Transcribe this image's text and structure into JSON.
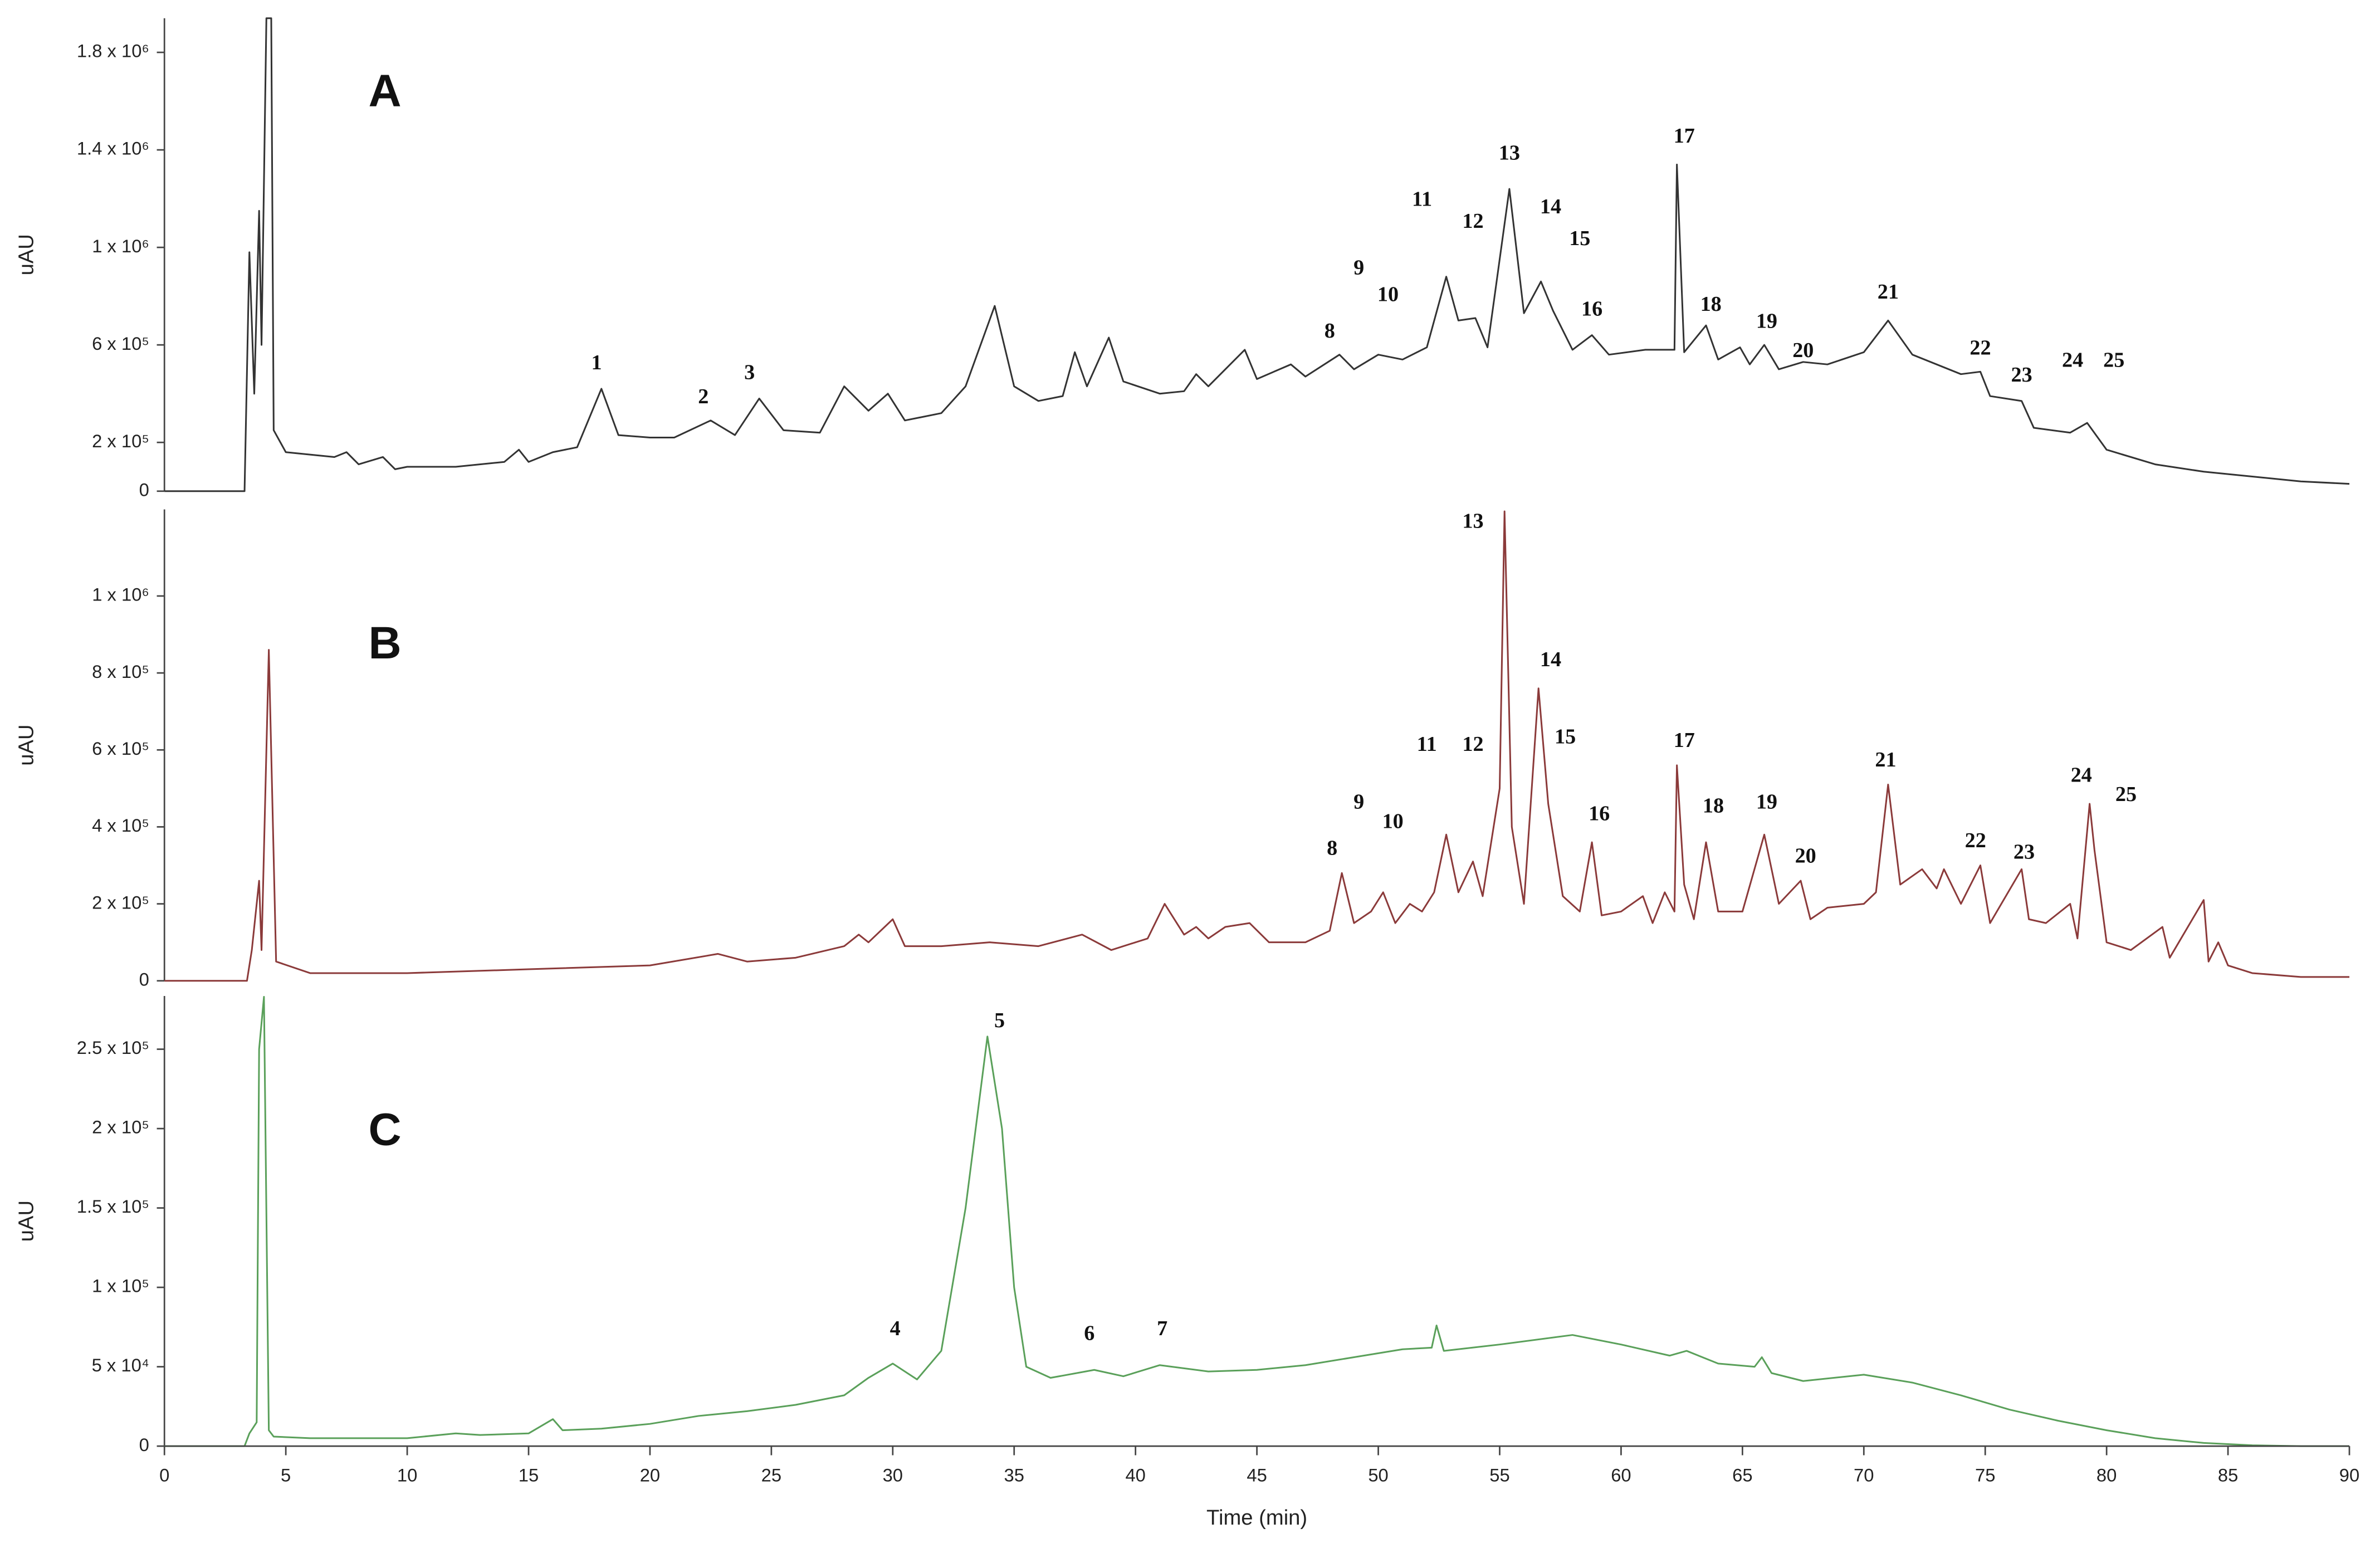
{
  "chart_data": [
    {
      "type": "line",
      "panel": "A",
      "ylabel": "uAU",
      "xlim": [
        0,
        90
      ],
      "ylim": [
        0,
        1940000
      ],
      "yticks": [
        0,
        {
          "value": 200000,
          "label": "2 x 10⁵"
        },
        {
          "value": 600000,
          "label": "6 x 10⁵"
        },
        {
          "value": 1000000,
          "label": "1 x 10⁶"
        },
        {
          "value": 1400000,
          "label": "1.4 x 10⁶"
        },
        {
          "value": 1800000,
          "label": "1.8 x 10⁶"
        }
      ],
      "x": [
        0,
        3.3,
        3.5,
        3.7,
        3.9,
        4.0,
        4.2,
        4.4,
        4.5,
        5,
        6,
        7,
        7.5,
        8,
        9,
        9.5,
        10,
        12,
        14,
        14.6,
        15,
        16,
        17,
        18,
        18.7,
        20,
        21,
        22.5,
        23.5,
        24.5,
        25.5,
        27,
        28,
        29,
        29.8,
        30.5,
        32,
        33,
        34.2,
        35,
        36,
        37,
        37.5,
        38,
        38.9,
        39.5,
        41,
        42,
        42.5,
        43,
        44.5,
        45,
        46.4,
        47,
        48.4,
        49,
        50,
        51,
        52,
        52.8,
        53.3,
        54,
        54.5,
        55.4,
        56,
        56.7,
        57.2,
        58,
        58.8,
        59.5,
        61,
        62.2,
        62.3,
        62.6,
        63.5,
        64,
        64.9,
        65.3,
        65.9,
        66.5,
        67.5,
        68.5,
        70,
        71,
        72,
        74,
        74.8,
        75.2,
        76.5,
        77,
        78.5,
        79.2,
        80,
        82,
        84,
        86,
        88,
        90
      ],
      "series": [
        {
          "color": "#333333",
          "values": [
            0,
            0,
            980000,
            400000,
            1150000,
            600000,
            1940000,
            1940000,
            250000,
            160000,
            150000,
            140000,
            160000,
            110000,
            140000,
            90000,
            100000,
            100000,
            120000,
            170000,
            120000,
            160000,
            180000,
            420000,
            230000,
            220000,
            220000,
            290000,
            230000,
            380000,
            250000,
            240000,
            430000,
            330000,
            400000,
            290000,
            320000,
            430000,
            760000,
            430000,
            370000,
            390000,
            570000,
            430000,
            630000,
            450000,
            400000,
            410000,
            480000,
            430000,
            580000,
            460000,
            520000,
            470000,
            560000,
            500000,
            560000,
            540000,
            590000,
            880000,
            700000,
            710000,
            590000,
            1240000,
            730000,
            860000,
            740000,
            580000,
            640000,
            560000,
            580000,
            580000,
            1340000,
            570000,
            680000,
            540000,
            590000,
            520000,
            600000,
            500000,
            530000,
            520000,
            570000,
            700000,
            560000,
            480000,
            490000,
            390000,
            370000,
            260000,
            240000,
            280000,
            170000,
            110000,
            80000,
            60000,
            40000,
            30000
          ]
        }
      ],
      "annotations": [
        {
          "text": "1",
          "x": 17.8,
          "y": 520000
        },
        {
          "text": "2",
          "x": 22.2,
          "y": 380000
        },
        {
          "text": "3",
          "x": 24.1,
          "y": 480000
        },
        {
          "text": "8",
          "x": 48,
          "y": 650000
        },
        {
          "text": "9",
          "x": 49.2,
          "y": 910000
        },
        {
          "text": "10",
          "x": 50.4,
          "y": 800000
        },
        {
          "text": "11",
          "x": 51.8,
          "y": 1190000
        },
        {
          "text": "12",
          "x": 53.9,
          "y": 1100000
        },
        {
          "text": "13",
          "x": 55.4,
          "y": 1380000
        },
        {
          "text": "14",
          "x": 57.1,
          "y": 1160000
        },
        {
          "text": "15",
          "x": 58.3,
          "y": 1030000
        },
        {
          "text": "16",
          "x": 58.8,
          "y": 740000
        },
        {
          "text": "17",
          "x": 62.6,
          "y": 1450000
        },
        {
          "text": "18",
          "x": 63.7,
          "y": 760000
        },
        {
          "text": "19",
          "x": 66,
          "y": 690000
        },
        {
          "text": "20",
          "x": 67.5,
          "y": 570000
        },
        {
          "text": "21",
          "x": 71,
          "y": 810000
        },
        {
          "text": "22",
          "x": 74.8,
          "y": 580000
        },
        {
          "text": "23",
          "x": 76.5,
          "y": 470000
        },
        {
          "text": "24",
          "x": 78.6,
          "y": 530000
        },
        {
          "text": "25",
          "x": 80.3,
          "y": 530000
        }
      ]
    },
    {
      "type": "line",
      "panel": "B",
      "ylabel": "uAU",
      "xlim": [
        0,
        90
      ],
      "ylim": [
        0,
        1225000
      ],
      "yticks": [
        0,
        {
          "value": 200000,
          "label": "2 x 10⁵"
        },
        {
          "value": 400000,
          "label": "4 x 10⁵"
        },
        {
          "value": 600000,
          "label": "6 x 10⁵"
        },
        {
          "value": 800000,
          "label": "8 x 10⁵"
        },
        {
          "value": 1000000,
          "label": "1 x 10⁶"
        }
      ],
      "x": [
        0,
        3.4,
        3.6,
        3.9,
        4.0,
        4.3,
        4.6,
        6,
        10,
        15,
        20,
        22.8,
        24,
        26,
        28,
        28.6,
        29,
        30,
        30.5,
        32,
        34,
        36,
        37.8,
        39,
        40.5,
        41.2,
        42,
        42.5,
        43,
        43.7,
        44.7,
        45.5,
        47,
        48,
        48.5,
        49,
        49.7,
        50.2,
        50.7,
        51.3,
        51.8,
        52.3,
        52.8,
        53.3,
        53.9,
        54.3,
        55.0,
        55.2,
        55.5,
        56,
        56.6,
        57,
        57.6,
        58.3,
        58.8,
        59.2,
        60,
        60.9,
        61.3,
        61.8,
        62.2,
        62.3,
        62.6,
        63,
        63.5,
        64,
        65,
        65.9,
        66.5,
        67.4,
        67.8,
        68.5,
        70,
        70.5,
        71,
        71.5,
        72.4,
        73,
        73.3,
        74,
        74.8,
        75.2,
        76.5,
        76.8,
        77.5,
        78.5,
        78.8,
        79.3,
        79.5,
        80,
        81,
        82.3,
        82.6,
        84.0,
        84.2,
        84.6,
        85,
        86,
        88,
        90
      ],
      "series": [
        {
          "color": "#8b3a3a",
          "values": [
            0,
            0,
            80000,
            260000,
            80000,
            860000,
            50000,
            20000,
            20000,
            30000,
            40000,
            70000,
            50000,
            60000,
            90000,
            120000,
            100000,
            160000,
            90000,
            90000,
            100000,
            90000,
            120000,
            80000,
            110000,
            200000,
            120000,
            140000,
            110000,
            140000,
            150000,
            100000,
            100000,
            130000,
            280000,
            150000,
            180000,
            230000,
            150000,
            200000,
            180000,
            230000,
            380000,
            230000,
            310000,
            220000,
            500000,
            1220000,
            400000,
            200000,
            760000,
            460000,
            220000,
            180000,
            360000,
            170000,
            180000,
            220000,
            150000,
            230000,
            180000,
            560000,
            250000,
            160000,
            360000,
            180000,
            180000,
            380000,
            200000,
            260000,
            160000,
            190000,
            200000,
            230000,
            510000,
            250000,
            290000,
            240000,
            290000,
            200000,
            300000,
            150000,
            290000,
            160000,
            150000,
            200000,
            110000,
            460000,
            340000,
            100000,
            80000,
            140000,
            60000,
            210000,
            50000,
            100000,
            40000,
            20000,
            10000,
            10000
          ]
        }
      ],
      "annotations": [
        {
          "text": "8",
          "x": 48.1,
          "y": 340000
        },
        {
          "text": "9",
          "x": 49.2,
          "y": 460000
        },
        {
          "text": "10",
          "x": 50.6,
          "y": 410000
        },
        {
          "text": "11",
          "x": 52,
          "y": 610000
        },
        {
          "text": "12",
          "x": 53.9,
          "y": 610000
        },
        {
          "text": "13",
          "x": 53.9,
          "y": 1190000
        },
        {
          "text": "14",
          "x": 57.1,
          "y": 830000
        },
        {
          "text": "15",
          "x": 57.7,
          "y": 630000
        },
        {
          "text": "16",
          "x": 59.1,
          "y": 430000
        },
        {
          "text": "17",
          "x": 62.6,
          "y": 620000
        },
        {
          "text": "18",
          "x": 63.8,
          "y": 450000
        },
        {
          "text": "19",
          "x": 66,
          "y": 460000
        },
        {
          "text": "20",
          "x": 67.6,
          "y": 320000
        },
        {
          "text": "21",
          "x": 70.9,
          "y": 570000
        },
        {
          "text": "22",
          "x": 74.6,
          "y": 360000
        },
        {
          "text": "23",
          "x": 76.6,
          "y": 330000
        },
        {
          "text": "24",
          "x": 78.96,
          "y": 530000
        },
        {
          "text": "25",
          "x": 80.8,
          "y": 480000
        }
      ]
    },
    {
      "type": "line",
      "panel": "C",
      "ylabel": "uAU",
      "xlabel": "Time (min)",
      "xlim": [
        0,
        90
      ],
      "ylim": [
        0,
        283500
      ],
      "xticks": [
        0,
        5,
        10,
        15,
        20,
        25,
        30,
        35,
        40,
        45,
        50,
        55,
        60,
        65,
        70,
        75,
        80,
        85,
        90
      ],
      "yticks": [
        0,
        {
          "value": 50000,
          "label": "5 x 10⁴"
        },
        {
          "value": 100000,
          "label": "1 x 10⁵"
        },
        {
          "value": 150000,
          "label": "1.5 x 10⁵"
        },
        {
          "value": 200000,
          "label": "2 x 10⁵"
        },
        {
          "value": 250000,
          "label": "2.5 x 10⁵"
        }
      ],
      "x": [
        0,
        3.3,
        3.5,
        3.8,
        3.9,
        4.1,
        4.3,
        4.5,
        6,
        10,
        12,
        13,
        15,
        16,
        16.4,
        18,
        20,
        22,
        24,
        26,
        28,
        29,
        30,
        31,
        32,
        33,
        33.9,
        34.5,
        35,
        35.5,
        36.5,
        38.3,
        39.5,
        41,
        43,
        45,
        47,
        49,
        51,
        52.2,
        52.4,
        52.7,
        55,
        58,
        60,
        62,
        62.7,
        64,
        65.5,
        65.8,
        66.2,
        67.5,
        70,
        72,
        74,
        76,
        78,
        80,
        82,
        84,
        86,
        88,
        90
      ],
      "series": [
        {
          "color": "#5aa05a",
          "values": [
            0,
            0,
            8000,
            15000,
            250000,
            283000,
            10000,
            6000,
            5000,
            5000,
            8000,
            7000,
            8000,
            17000,
            10000,
            11000,
            14000,
            19000,
            22000,
            26000,
            32000,
            43000,
            52000,
            42000,
            60000,
            150000,
            258000,
            200000,
            100000,
            50000,
            43000,
            48000,
            44000,
            51000,
            47000,
            48000,
            51000,
            56000,
            61000,
            62000,
            76000,
            60000,
            64000,
            70000,
            64000,
            57000,
            60000,
            52000,
            50000,
            56000,
            46000,
            41000,
            45000,
            40000,
            32000,
            23000,
            16000,
            10000,
            5000,
            2000,
            500,
            0,
            0
          ]
        }
      ],
      "annotations": [
        {
          "text": "4",
          "x": 30.1,
          "y": 73000
        },
        {
          "text": "5",
          "x": 34.4,
          "y": 267000
        },
        {
          "text": "6",
          "x": 38.1,
          "y": 70000
        },
        {
          "text": "7",
          "x": 41.1,
          "y": 73000
        }
      ]
    }
  ]
}
